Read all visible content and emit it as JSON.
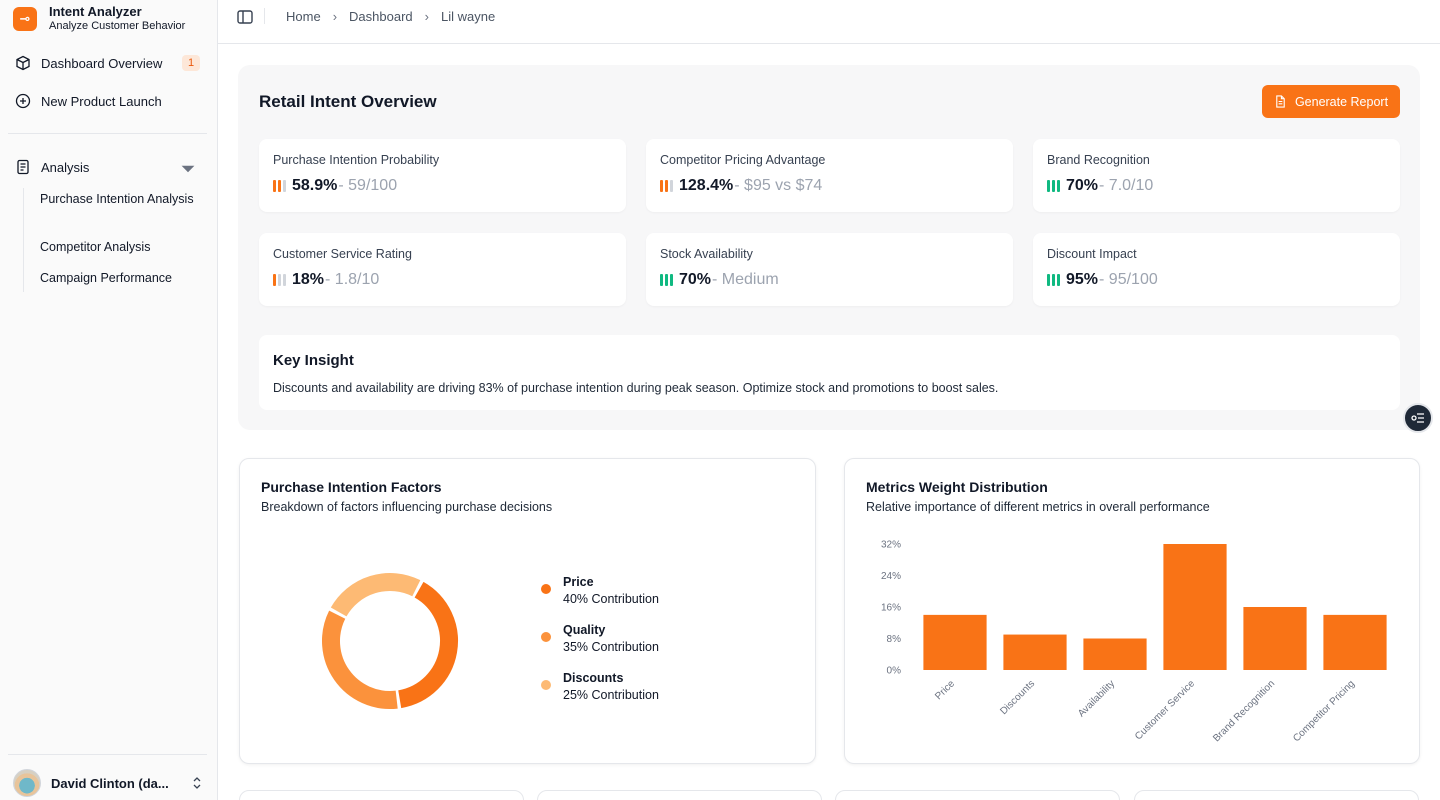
{
  "app": {
    "title": "Intent Analyzer",
    "subtitle": "Analyze Customer Behavior",
    "logo_glyph": "⊸"
  },
  "sidebar": {
    "items": [
      {
        "label": "Dashboard Overview",
        "badge": "1"
      },
      {
        "label": "New Product Launch"
      }
    ],
    "group": {
      "label": "Analysis",
      "children": [
        "Purchase Intention Analysis",
        "Competitor Analysis",
        "Campaign Performance"
      ]
    },
    "user": {
      "name": "David Clinton (da..."
    }
  },
  "header": {
    "breadcrumbs": [
      "Home",
      "Dashboard",
      "Lil wayne"
    ],
    "separator": "›"
  },
  "overview": {
    "title": "Retail Intent Overview",
    "generate_label": "Generate Report",
    "metrics": [
      {
        "label": "Purchase Intention Probability",
        "value": "58.9%",
        "detail": "- 59/100",
        "level": 2,
        "color": "#f97316"
      },
      {
        "label": "Competitor Pricing Advantage",
        "value": "128.4%",
        "detail": "- $95 vs $74",
        "level": 2,
        "color": "#f97316"
      },
      {
        "label": "Brand Recognition",
        "value": "70%",
        "detail": "- 7.0/10",
        "level": 3,
        "color": "#10b981"
      },
      {
        "label": "Customer Service Rating",
        "value": "18%",
        "detail": "- 1.8/10",
        "level": 1,
        "color": "#f97316"
      },
      {
        "label": "Stock Availability",
        "value": "70%",
        "detail": "- Medium",
        "level": 3,
        "color": "#10b981"
      },
      {
        "label": "Discount Impact",
        "value": "95%",
        "detail": "- 95/100",
        "level": 3,
        "color": "#10b981"
      }
    ],
    "insight": {
      "title": "Key Insight",
      "text": "Discounts and availability are driving 83% of purchase intention during peak season. Optimize stock and promotions to boost sales."
    }
  },
  "factors_card": {
    "title": "Purchase Intention Factors",
    "subtitle": "Breakdown of factors influencing purchase decisions"
  },
  "weights_card": {
    "title": "Metrics Weight Distribution",
    "subtitle": "Relative importance of different metrics in overall performance"
  },
  "chart_data": [
    {
      "type": "pie",
      "variant": "donut",
      "categories": [
        "Price",
        "Quality",
        "Discounts"
      ],
      "values": [
        40,
        35,
        25
      ],
      "labels": [
        "40% Contribution",
        "35% Contribution",
        "25% Contribution"
      ],
      "colors": [
        "#f97316",
        "#fb923c",
        "#fdba74"
      ],
      "legend": "right"
    },
    {
      "type": "bar",
      "categories": [
        "Price",
        "Discounts",
        "Availability",
        "Customer Service",
        "Brand Recognition",
        "Competitor Pricing"
      ],
      "values": [
        14,
        9,
        8,
        32,
        16,
        14
      ],
      "yticks": [
        "0%",
        "8%",
        "16%",
        "24%",
        "32%"
      ],
      "ytick_values": [
        0,
        8,
        16,
        24,
        32
      ],
      "ylim": [
        0,
        32
      ],
      "color": "#f97316",
      "grid": false
    }
  ]
}
